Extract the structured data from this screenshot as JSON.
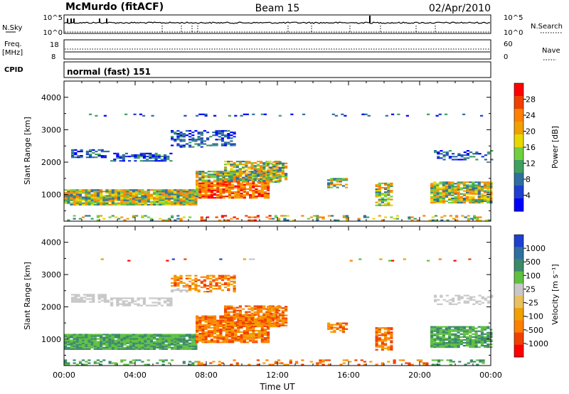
{
  "header": {
    "station": "McMurdo (fitACF)",
    "beam": "Beam 15",
    "date": "02/Apr/2010"
  },
  "top_panels": {
    "nsky_label": "N.Sky",
    "nsky_tick_top": "10^5",
    "nsky_tick_bottom": "10^0",
    "nsearch_label": "N.Search",
    "nsearch_tick_top": "10^5",
    "nsearch_tick_bottom": "10^0",
    "freq_label": "Freq.",
    "freq_unit": "[MHz]",
    "freq_tick_top": "18",
    "freq_tick_bottom": "8",
    "nave_label": "Nave",
    "nave_tick_top": "60",
    "nave_tick_bottom": "0",
    "cpid_label": "CPID",
    "cpid_value": "normal (fast) 151"
  },
  "chart_data": [
    {
      "type": "heatmap",
      "name": "power-panel",
      "ylabel": "Slant Range [km]",
      "yticks": [
        "4000",
        "3000",
        "2000",
        "1000"
      ],
      "ylim": [
        180,
        4500
      ],
      "xlim": [
        0,
        24
      ],
      "colorbar_label": "Power [dB]",
      "colorbar_ticks": [
        "28",
        "24",
        "20",
        "16",
        "12",
        "8",
        "4"
      ],
      "colorbar_colors": [
        "#ff0000",
        "#f04000",
        "#ff7f00",
        "#f0a000",
        "#e8d800",
        "#6fd040",
        "#3fa060",
        "#2f6fa0",
        "#1f3fd0",
        "#0000ff"
      ]
    },
    {
      "type": "heatmap",
      "name": "velocity-panel",
      "ylabel": "Slant Range [km]",
      "yticks": [
        "4000",
        "3000",
        "2000",
        "1000"
      ],
      "ylim": [
        180,
        4500
      ],
      "xlim": [
        0,
        24
      ],
      "xlabel": "Time UT",
      "xticks": [
        "00:00",
        "04:00",
        "08:00",
        "12:00",
        "16:00",
        "20:00",
        "00:00"
      ],
      "colorbar_label": "Velocity [m s⁻¹]",
      "colorbar_ticks": [
        "1000",
        "500",
        "100",
        "25",
        "-25",
        "-100",
        "-500",
        "-1000"
      ],
      "colorbar_colors": [
        "#1f3fd0",
        "#2f6fa0",
        "#3a8a6a",
        "#5fc040",
        "#c8c8c8",
        "#e8c060",
        "#f0a000",
        "#ff7f00",
        "#f04000",
        "#ff0000"
      ]
    }
  ]
}
